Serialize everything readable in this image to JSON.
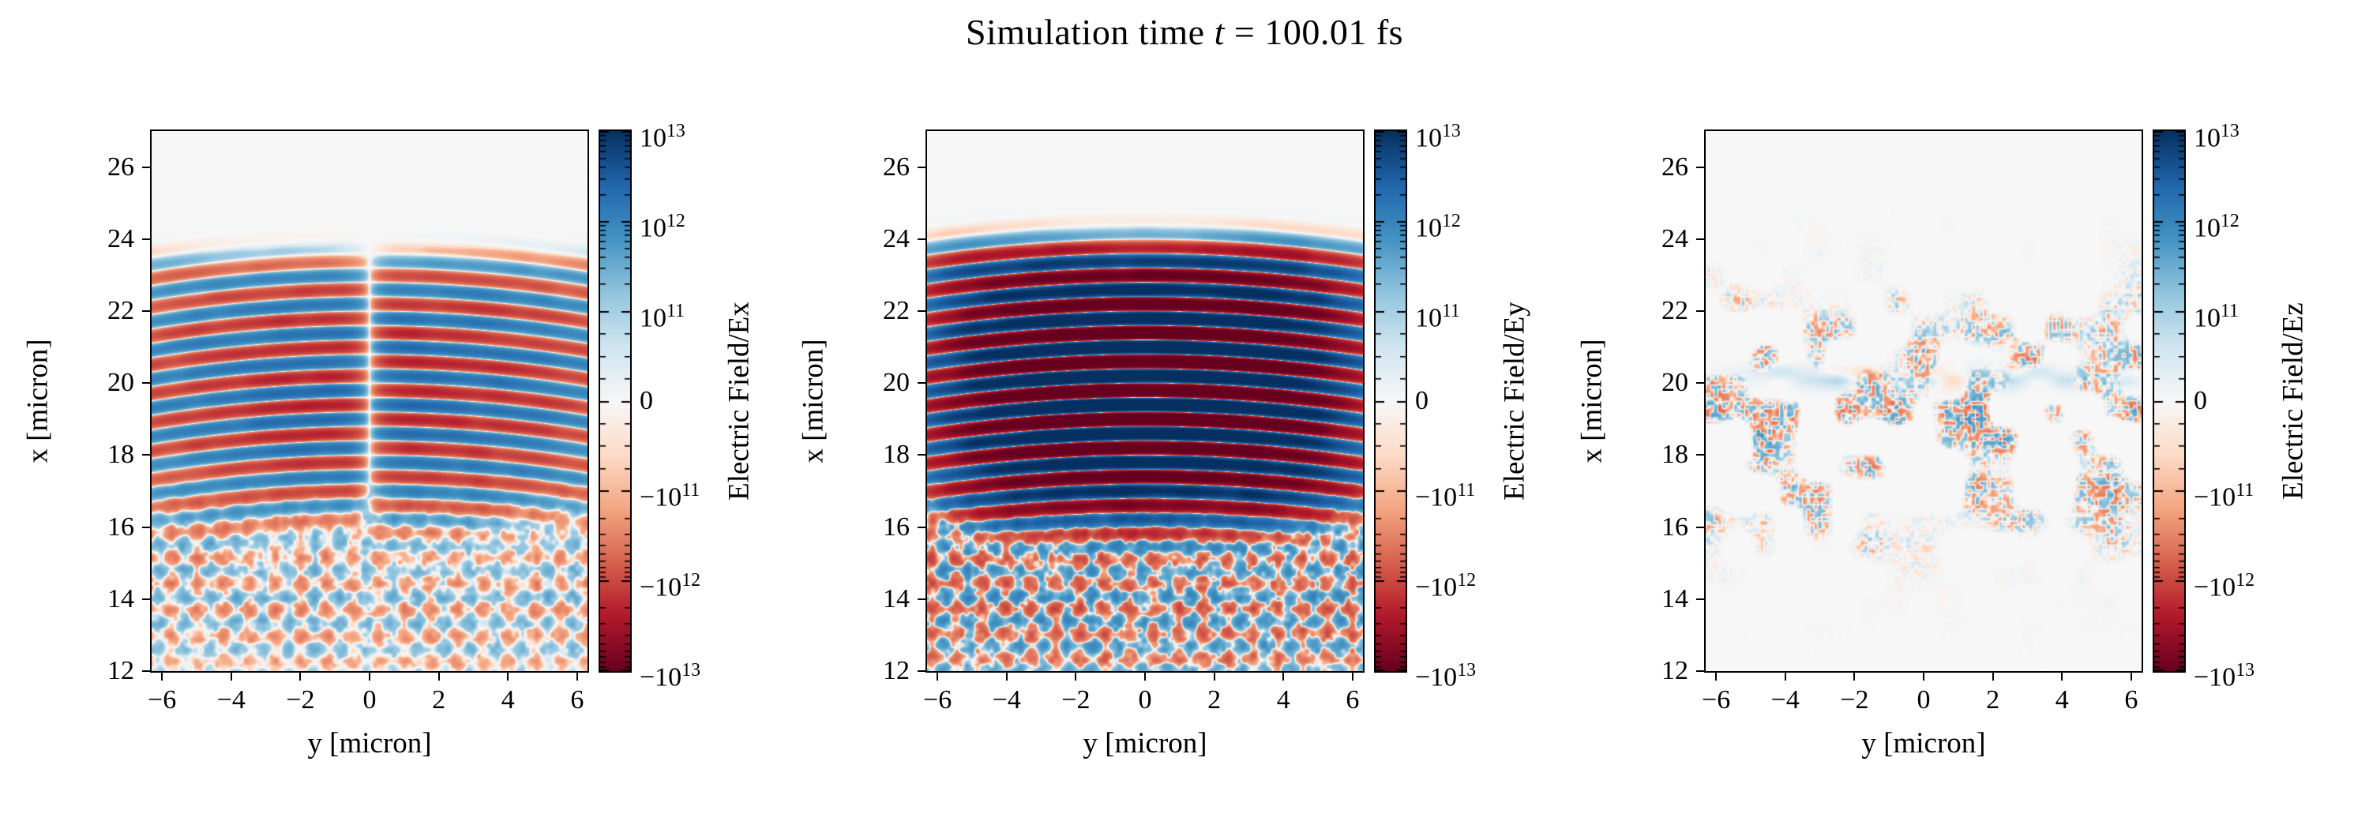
{
  "header": {
    "title_prefix": "Simulation time ",
    "title_var": "t",
    "title_suffix": " = 100.01 fs"
  },
  "chart_data": {
    "type": "heatmap",
    "title": "Simulation time t = 100.01 fs",
    "simulation_time_fs": 100.01,
    "layout": "1x3",
    "colormap": "RdBu",
    "background_color": "#ffffff",
    "zero_field_color": "#f7f7f7",
    "norm": {
      "type": "symlog",
      "vmin": -10000000000000.0,
      "vmax": 10000000000000.0,
      "linthresh": 100000000000.0,
      "vcenter": 0
    },
    "colorbar": {
      "tick_values": [
        10000000000000.0,
        1000000000000.0,
        100000000000.0,
        0,
        -100000000000.0,
        -1000000000000.0,
        -10000000000000.0
      ],
      "tick_labels": [
        "10^13",
        "10^12",
        "10^11",
        "0",
        "−10^11",
        "−10^12",
        "−10^13"
      ]
    },
    "axes": {
      "xlabel": "y [micron]",
      "ylabel": "x [micron]",
      "xlim": [
        -6.3,
        6.3
      ],
      "ylim": [
        12,
        27
      ],
      "xtick_values": [
        -6,
        -4,
        -2,
        0,
        2,
        4,
        6
      ],
      "xtick_labels": [
        "−6",
        "−4",
        "−2",
        "0",
        "2",
        "4",
        "6"
      ],
      "ytick_values": [
        12,
        14,
        16,
        18,
        20,
        22,
        24,
        26
      ],
      "ytick_labels": [
        "12",
        "14",
        "16",
        "18",
        "20",
        "22",
        "24",
        "26"
      ]
    },
    "panels": [
      {
        "id": "ex",
        "component": "Ex",
        "colorbar_label": "Electric Field/Ex",
        "description": "Horizontal laser wavefront stripes between x≈16–23 µm, antisymmetric about y=0 (node/seam at y=0), weaker criss-cross scattered interference below x≈16 µm",
        "field": {
          "kind": "stripes",
          "peak": 2000000000000.0,
          "wavelength_um": 0.8,
          "front_um": 23.35,
          "back_um": 16.15,
          "center_um": 19.9,
          "sigma_um": 2.7,
          "transverse": "antisymmetric",
          "width_um": 5.0,
          "node_um": 0.6,
          "curvature_um": 40,
          "scatter_peak": 350000000000.0,
          "scatter_period_um": 1.05,
          "noise_peak": 150000000000.0
        }
      },
      {
        "id": "ey",
        "component": "Ey",
        "colorbar_label": "Electric Field/Ey",
        "description": "Strong saturated horizontal wavefront stripes between x≈16–23.5 µm, symmetric about y=0, grainy scattered interference below x≈16 µm",
        "field": {
          "kind": "stripes",
          "peak": 20000000000000.0,
          "wavelength_um": 0.8,
          "front_um": 23.6,
          "back_um": 16.35,
          "center_um": 19.9,
          "sigma_um": 2.9,
          "transverse": "symmetric",
          "width_um": 5.4,
          "node_um": 0,
          "curvature_um": 45,
          "scatter_peak": 900000000000.0,
          "scatter_period_um": 1.0,
          "noise_peak": 450000000000.0
        }
      },
      {
        "id": "ez",
        "component": "Ez",
        "colorbar_label": "Electric Field/Ez",
        "description": "Near-zero field; faint sparse speckle noise concentrated around x≈17–20.5 µm with a weak wisp near x≈20 µm",
        "field": {
          "kind": "speckle",
          "peak": 300000000000.0,
          "band_center_um": 18.9,
          "band_sigma_um": 1.9,
          "coverage": 0.5
        }
      }
    ]
  }
}
